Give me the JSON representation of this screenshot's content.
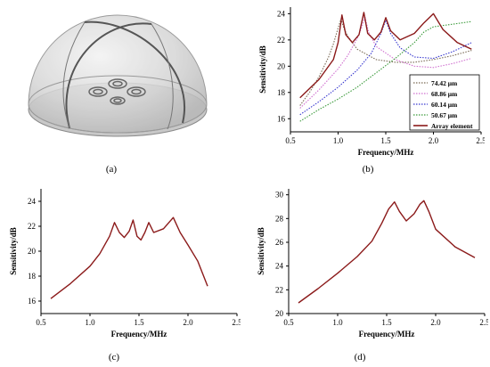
{
  "captions": {
    "a": "(a)",
    "b": "(b)",
    "c": "(c)",
    "d": "(d)"
  },
  "colors": {
    "axis": "#000000",
    "array": "#8b1a1a",
    "s1": "#7a6a55",
    "s2": "#d070d0",
    "s3": "#3a3ad0",
    "s4": "#3a9a3a",
    "dome_fill": "#d8d8d8",
    "dome_edge": "#555555"
  },
  "chart_data": [
    {
      "id": "b",
      "type": "line",
      "xlabel": "Frequency/MHz",
      "ylabel": "Sensitivity/dB",
      "xlim": [
        0.5,
        2.5
      ],
      "ylim": [
        15,
        24.5
      ],
      "xticks": [
        "0.5",
        "1.0",
        "1.5",
        "2.0",
        "2.5"
      ],
      "yticks": [
        "16",
        "18",
        "20",
        "22",
        "24"
      ],
      "legend_position": "bottom-right",
      "series": [
        {
          "name": "74.42 μm",
          "style": "dotted",
          "x": [
            0.6,
            0.7,
            0.8,
            0.9,
            0.95,
            1.0,
            1.03,
            1.06,
            1.1,
            1.2,
            1.4,
            1.6,
            1.8,
            2.0,
            2.2,
            2.4
          ],
          "values": [
            17.0,
            18.0,
            19.2,
            20.7,
            21.7,
            22.9,
            23.6,
            22.9,
            22.3,
            21.3,
            20.5,
            20.3,
            20.3,
            20.5,
            20.8,
            21.2
          ]
        },
        {
          "name": "68.86 μm",
          "style": "dotted",
          "x": [
            0.6,
            0.8,
            1.0,
            1.1,
            1.2,
            1.25,
            1.28,
            1.32,
            1.4,
            1.6,
            1.8,
            2.0,
            2.2,
            2.4
          ],
          "values": [
            16.8,
            18.2,
            19.8,
            20.8,
            22.1,
            23.0,
            23.8,
            22.6,
            21.5,
            20.5,
            20.0,
            19.9,
            20.2,
            20.6
          ]
        },
        {
          "name": "60.14 μm",
          "style": "dotted",
          "x": [
            0.6,
            0.8,
            1.0,
            1.2,
            1.35,
            1.45,
            1.5,
            1.55,
            1.65,
            1.8,
            2.0,
            2.2,
            2.4
          ],
          "values": [
            16.3,
            17.3,
            18.4,
            19.7,
            21.0,
            22.5,
            23.5,
            22.5,
            21.4,
            20.7,
            20.6,
            21.1,
            21.8
          ]
        },
        {
          "name": "50.67 μm",
          "style": "dotted",
          "x": [
            0.6,
            0.8,
            1.0,
            1.2,
            1.4,
            1.6,
            1.8,
            1.9,
            2.0,
            2.1,
            2.2,
            2.4
          ],
          "values": [
            15.8,
            16.7,
            17.5,
            18.4,
            19.5,
            20.6,
            21.8,
            22.6,
            23.0,
            23.1,
            23.2,
            23.4
          ]
        },
        {
          "name": "Array element",
          "style": "solid",
          "x": [
            0.6,
            0.8,
            0.95,
            1.0,
            1.04,
            1.08,
            1.15,
            1.22,
            1.27,
            1.31,
            1.38,
            1.45,
            1.5,
            1.55,
            1.65,
            1.8,
            1.9,
            2.0,
            2.1,
            2.25,
            2.4
          ],
          "values": [
            17.6,
            19.0,
            20.5,
            21.8,
            23.9,
            22.4,
            21.8,
            22.4,
            24.1,
            22.5,
            22.0,
            22.6,
            23.7,
            22.7,
            22.0,
            22.5,
            23.3,
            24.0,
            22.8,
            21.8,
            21.3
          ]
        }
      ]
    },
    {
      "id": "c",
      "type": "line",
      "xlabel": "Frequency/MHz",
      "ylabel": "Sensitivity/dB",
      "xlim": [
        0.5,
        2.5
      ],
      "ylim": [
        15,
        25
      ],
      "xticks": [
        "0.5",
        "1.0",
        "1.5",
        "2.0",
        "2.5"
      ],
      "yticks": [
        "16",
        "18",
        "20",
        "22",
        "24"
      ],
      "series": [
        {
          "name": "",
          "style": "solid",
          "x": [
            0.6,
            0.8,
            1.0,
            1.1,
            1.2,
            1.25,
            1.3,
            1.35,
            1.4,
            1.44,
            1.48,
            1.52,
            1.56,
            1.6,
            1.65,
            1.75,
            1.85,
            1.92,
            2.0,
            2.1,
            2.2
          ],
          "values": [
            16.2,
            17.4,
            18.8,
            19.8,
            21.2,
            22.3,
            21.5,
            21.1,
            21.6,
            22.5,
            21.2,
            20.9,
            21.5,
            22.3,
            21.5,
            21.8,
            22.7,
            21.5,
            20.5,
            19.2,
            17.2
          ]
        }
      ]
    },
    {
      "id": "d",
      "type": "line",
      "xlabel": "Frequency/MHz",
      "ylabel": "Sensitivity/dB",
      "xlim": [
        0.5,
        2.5
      ],
      "ylim": [
        20,
        30.5
      ],
      "xticks": [
        "0.5",
        "1.0",
        "1.5",
        "2.0",
        "2.5"
      ],
      "yticks": [
        "20",
        "22",
        "24",
        "26",
        "28",
        "30"
      ],
      "series": [
        {
          "name": "",
          "style": "solid",
          "x": [
            0.6,
            0.8,
            1.0,
            1.2,
            1.35,
            1.45,
            1.52,
            1.58,
            1.63,
            1.7,
            1.78,
            1.84,
            1.88,
            1.93,
            2.0,
            2.2,
            2.4
          ],
          "values": [
            20.9,
            22.1,
            23.4,
            24.8,
            26.1,
            27.6,
            28.8,
            29.4,
            28.6,
            27.8,
            28.4,
            29.2,
            29.5,
            28.6,
            27.1,
            25.6,
            24.7
          ]
        }
      ]
    }
  ]
}
